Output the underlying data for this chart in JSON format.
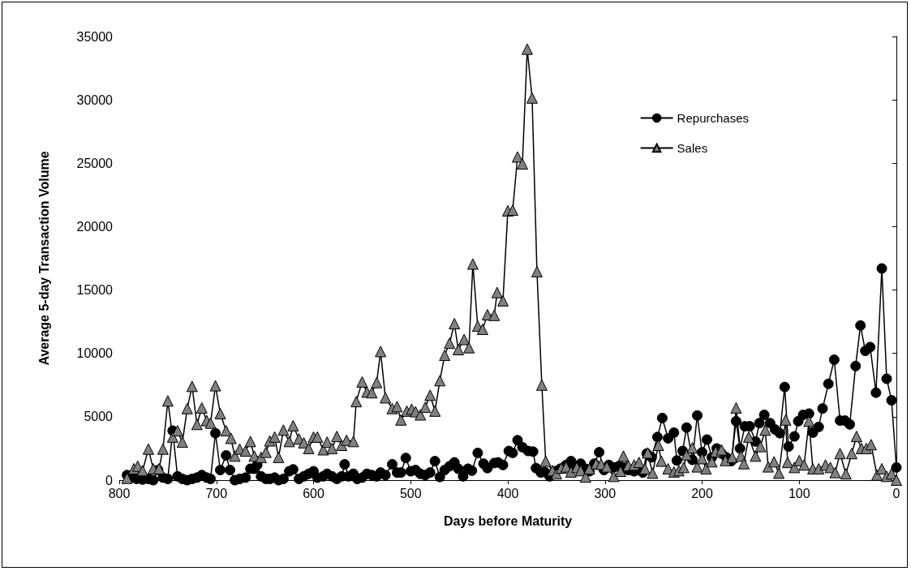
{
  "chart_data": {
    "type": "line",
    "xlabel": "Days before Maturity",
    "ylabel": "Average 5-day Transaction Volume",
    "xlim": [
      800,
      0
    ],
    "xticks": [
      800,
      700,
      600,
      500,
      400,
      300,
      200,
      100,
      0
    ],
    "ylim": [
      0,
      35000
    ],
    "yticks": [
      0,
      5000,
      10000,
      15000,
      20000,
      25000,
      30000,
      35000
    ],
    "grid": false,
    "legend": "top right",
    "line_style": "solid",
    "series": [
      {
        "name": "Repurchases",
        "color": "#000000",
        "marker": "circle",
        "x": [
          792,
          787,
          782,
          776,
          770,
          765,
          760,
          755,
          750,
          745,
          740,
          735,
          730,
          725,
          720,
          715,
          710,
          706,
          701,
          696,
          690,
          686,
          681,
          676,
          670,
          665,
          661,
          658,
          654,
          649,
          645,
          640,
          636,
          631,
          625,
          621,
          615,
          610,
          605,
          600,
          596,
          590,
          586,
          581,
          576,
          571,
          568,
          564,
          559,
          555,
          550,
          545,
          540,
          535,
          531,
          526,
          519,
          514,
          510,
          505,
          500,
          495,
          490,
          485,
          480,
          475,
          470,
          465,
          460,
          455,
          451,
          446,
          441,
          437,
          431,
          425,
          421,
          414,
          410,
          405,
          399,
          395,
          390,
          385,
          379,
          374,
          371,
          366,
          362,
          357,
          352,
          346,
          340,
          335,
          330,
          325,
          320,
          316,
          311,
          306,
          301,
          296,
          291,
          286,
          281,
          276,
          270,
          265,
          261,
          257,
          252,
          246,
          241,
          235,
          229,
          226,
          220,
          216,
          210,
          205,
          200,
          195,
          190,
          185,
          180,
          175,
          170,
          165,
          161,
          156,
          151,
          145,
          141,
          136,
          130,
          125,
          120,
          115,
          111,
          105,
          101,
          96,
          90,
          86,
          80,
          76,
          70,
          64,
          58,
          53,
          48,
          42,
          37,
          32,
          27,
          21,
          15,
          10,
          5,
          0
        ],
        "values": [
          400,
          200,
          100,
          50,
          100,
          0,
          800,
          200,
          100,
          3900,
          300,
          100,
          0,
          100,
          200,
          400,
          200,
          100,
          3700,
          800,
          1950,
          800,
          0,
          100,
          200,
          900,
          900,
          1200,
          300,
          100,
          100,
          200,
          0,
          100,
          700,
          850,
          100,
          300,
          500,
          700,
          200,
          300,
          500,
          300,
          100,
          300,
          1250,
          300,
          500,
          100,
          200,
          500,
          400,
          300,
          600,
          400,
          1250,
          600,
          600,
          1750,
          700,
          800,
          500,
          400,
          600,
          1500,
          250,
          800,
          1100,
          1400,
          900,
          300,
          900,
          750,
          2150,
          1300,
          950,
          1350,
          1400,
          1200,
          2300,
          2150,
          3150,
          2600,
          2300,
          2250,
          950,
          600,
          650,
          300,
          700,
          900,
          1200,
          1500,
          1100,
          1300,
          900,
          700,
          1300,
          2200,
          800,
          1200,
          1000,
          1100,
          1000,
          800,
          700,
          800,
          600,
          2100,
          1800,
          3400,
          4900,
          3300,
          3750,
          1550,
          2300,
          4150,
          1600,
          5100,
          2200,
          3200,
          1800,
          2500,
          2100,
          1800,
          1500,
          4650,
          2500,
          4250,
          4250,
          3050,
          4500,
          5150,
          4500,
          4000,
          3700,
          7350,
          2650,
          3450,
          4650,
          5150,
          5250,
          3750,
          4200,
          5650,
          7600,
          9500,
          4700,
          4700,
          4400,
          9000,
          12200,
          10200,
          10500,
          6900,
          16700,
          8000,
          6300,
          1000
        ]
      },
      {
        "name": "Sales",
        "color": "#808080",
        "marker": "triangle",
        "x": [
          792,
          785,
          781,
          776,
          770,
          765,
          759,
          755,
          750,
          745,
          740,
          735,
          730,
          725,
          720,
          715,
          710,
          706,
          701,
          696,
          690,
          685,
          681,
          676,
          670,
          665,
          661,
          654,
          649,
          645,
          640,
          636,
          631,
          625,
          621,
          615,
          610,
          605,
          600,
          596,
          590,
          586,
          581,
          576,
          571,
          566,
          559,
          556,
          550,
          545,
          540,
          535,
          531,
          526,
          519,
          514,
          510,
          504,
          499,
          495,
          490,
          485,
          480,
          475,
          470,
          465,
          460,
          455,
          451,
          445,
          440,
          436,
          431,
          426,
          421,
          414,
          411,
          405,
          400,
          395,
          390,
          385,
          380,
          375,
          370,
          365,
          361,
          354,
          350,
          345,
          340,
          335,
          329,
          325,
          320,
          316,
          309,
          304,
          298,
          291,
          284,
          281,
          276,
          270,
          265,
          259,
          256,
          251,
          245,
          242,
          235,
          229,
          224,
          219,
          216,
          210,
          205,
          200,
          196,
          190,
          186,
          180,
          176,
          169,
          165,
          160,
          157,
          152,
          145,
          140,
          135,
          132,
          126,
          121,
          114,
          112,
          105,
          100,
          95,
          90,
          86,
          80,
          73,
          68,
          63,
          58,
          52,
          46,
          41,
          36,
          31,
          26,
          20,
          15,
          10,
          5,
          0
        ],
        "values": [
          150,
          900,
          1100,
          750,
          2450,
          900,
          900,
          2450,
          6250,
          3400,
          3900,
          3000,
          5650,
          7400,
          4400,
          5700,
          4700,
          4500,
          7450,
          5250,
          3900,
          3300,
          1900,
          2450,
          2300,
          3050,
          1900,
          1800,
          2200,
          3100,
          3400,
          1800,
          3950,
          3050,
          4300,
          3250,
          2950,
          2500,
          3400,
          3400,
          2400,
          3000,
          2500,
          3450,
          2750,
          3150,
          3050,
          6200,
          7750,
          6950,
          6900,
          7700,
          10150,
          6500,
          5650,
          5800,
          4750,
          5450,
          5600,
          5400,
          5150,
          5750,
          6700,
          5450,
          7850,
          9850,
          10800,
          12350,
          10300,
          11100,
          10450,
          17050,
          12150,
          11900,
          13050,
          13000,
          14800,
          14150,
          21250,
          21300,
          25500,
          24950,
          34000,
          30150,
          16450,
          7500,
          1500,
          750,
          500,
          950,
          1050,
          650,
          1000,
          750,
          250,
          900,
          1300,
          1250,
          1050,
          300,
          700,
          1900,
          1150,
          1200,
          1400,
          900,
          2150,
          550,
          2750,
          1500,
          900,
          650,
          750,
          1000,
          2000,
          2550,
          1050,
          1700,
          900,
          1450,
          2250,
          2400,
          1550,
          1800,
          5700,
          1900,
          1300,
          3400,
          1900,
          2650,
          3950,
          1050,
          1450,
          550,
          4750,
          1400,
          1000,
          1550,
          1200,
          4650,
          900,
          900,
          1200,
          1000,
          600,
          2100,
          500,
          2100,
          3450,
          2500,
          2500,
          2800,
          400,
          900,
          300,
          500,
          0
        ]
      }
    ]
  }
}
